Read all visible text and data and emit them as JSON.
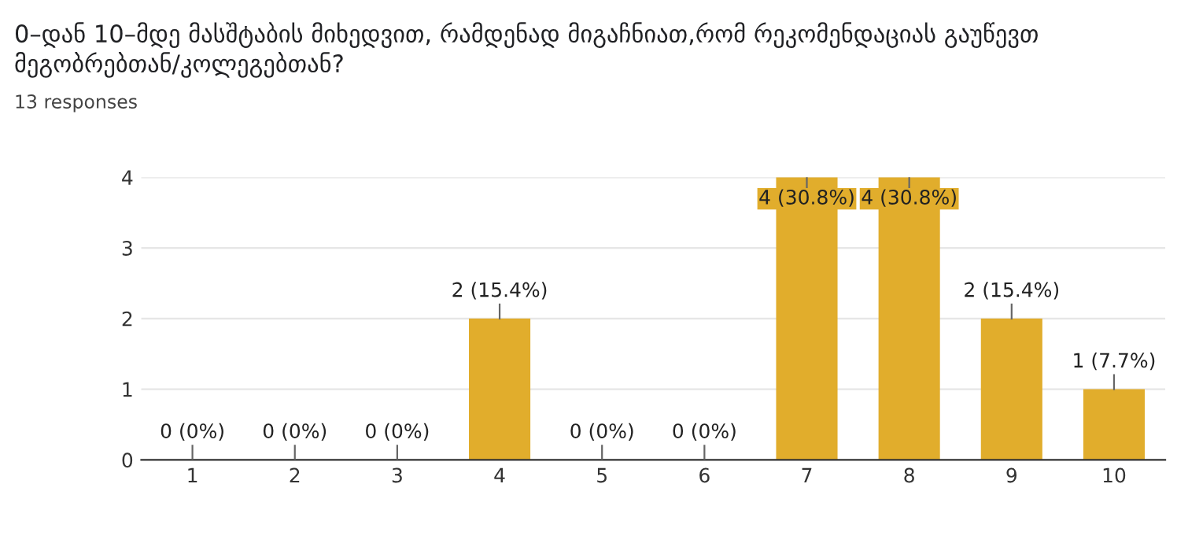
{
  "chart_data": {
    "type": "bar",
    "title": "0–დან 10–მდე მასშტაბის მიხედვით, რამდენად მიგაჩნიათ,რომ რეკომენდაციას გაუწევთ მეგობრებთან/კოლეგებთან?",
    "subtitle": "13 responses",
    "categories": [
      "1",
      "2",
      "3",
      "4",
      "5",
      "6",
      "7",
      "8",
      "9",
      "10"
    ],
    "values": [
      0,
      0,
      0,
      2,
      0,
      0,
      4,
      4,
      2,
      1
    ],
    "value_labels": [
      "0 (0%)",
      "0 (0%)",
      "0 (0%)",
      "2 (15.4%)",
      "0 (0%)",
      "0 (0%)",
      "4 (30.8%)",
      "4 (30.8%)",
      "2 (15.4%)",
      "1 (7.7%)"
    ],
    "color": "#e1ad2c",
    "ylim": [
      0,
      4
    ],
    "yticks": [
      0,
      1,
      2,
      3,
      4
    ],
    "grid": "y",
    "legend": false
  }
}
